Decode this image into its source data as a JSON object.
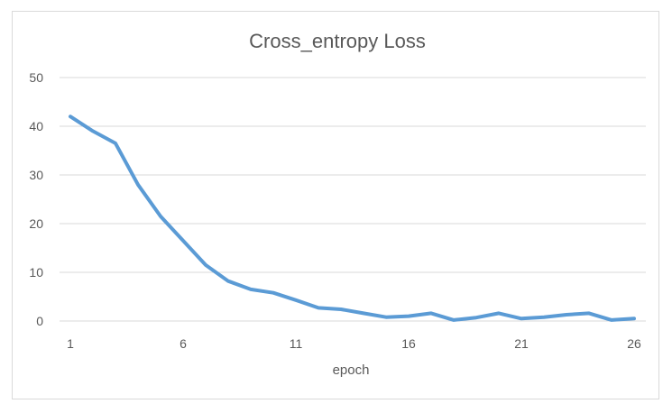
{
  "chart_data": {
    "type": "line",
    "title": "Cross_entropy Loss",
    "xlabel": "epoch",
    "ylabel": "",
    "x": [
      1,
      2,
      3,
      4,
      5,
      6,
      7,
      8,
      9,
      10,
      11,
      12,
      13,
      14,
      15,
      16,
      17,
      18,
      19,
      20,
      21,
      22,
      23,
      24,
      25,
      26
    ],
    "series": [
      {
        "values": [
          42,
          39,
          36.5,
          28,
          21.5,
          16.5,
          11.5,
          8.2,
          6.5,
          5.8,
          4.3,
          2.7,
          2.4,
          1.6,
          0.8,
          1.0,
          1.6,
          0.2,
          0.7,
          1.6,
          0.5,
          0.8,
          1.3,
          1.6,
          0.2,
          0.5
        ],
        "color": "#5b9bd5"
      }
    ],
    "xticks": [
      "1",
      "6",
      "11",
      "16",
      "21",
      "26"
    ],
    "yticks": [
      "0",
      "10",
      "20",
      "30",
      "40",
      "50"
    ],
    "ylim": [
      0,
      50
    ],
    "grid": true,
    "gridlines_color": "#d9d9d9"
  }
}
